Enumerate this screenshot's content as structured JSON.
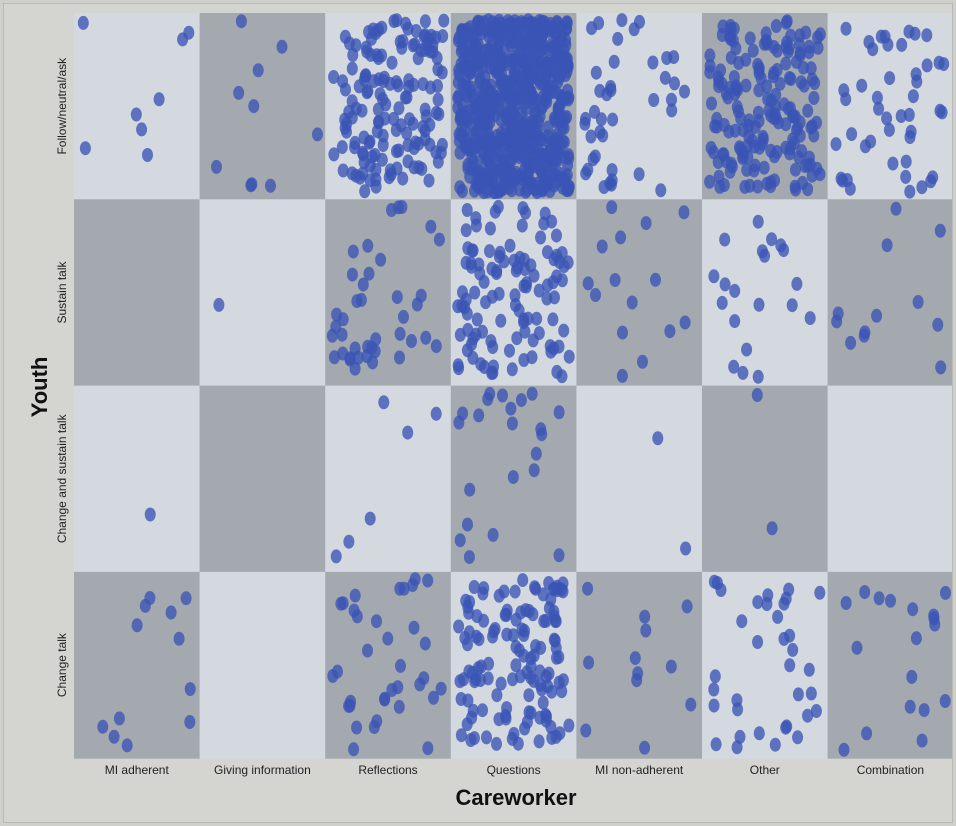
{
  "chart_data": {
    "type": "scatter",
    "subtype": "jittered categorical mosaic",
    "title": "",
    "xlabel": "Careworker",
    "ylabel": "Youth",
    "x_categories": [
      "MI adherent",
      "Giving information",
      "Reflections",
      "Questions",
      "MI non-adherent",
      "Other",
      "Combination"
    ],
    "y_categories": [
      "Follow/neutral/ask",
      "Sustain talk",
      "Change and sustain talk",
      "Change talk"
    ],
    "counts": [
      [
        8,
        10,
        150,
        700,
        40,
        180,
        45
      ],
      [
        0,
        1,
        40,
        110,
        15,
        20,
        12
      ],
      [
        1,
        0,
        6,
        22,
        2,
        2,
        0
      ],
      [
        12,
        0,
        35,
        130,
        12,
        35,
        18
      ]
    ],
    "grid": false,
    "legend": "none",
    "colors": {
      "cell_dark": "#a4a9b0",
      "cell_light": "#d4d9e0",
      "point": "#3a55b5",
      "background": "#d4d5d1"
    }
  }
}
